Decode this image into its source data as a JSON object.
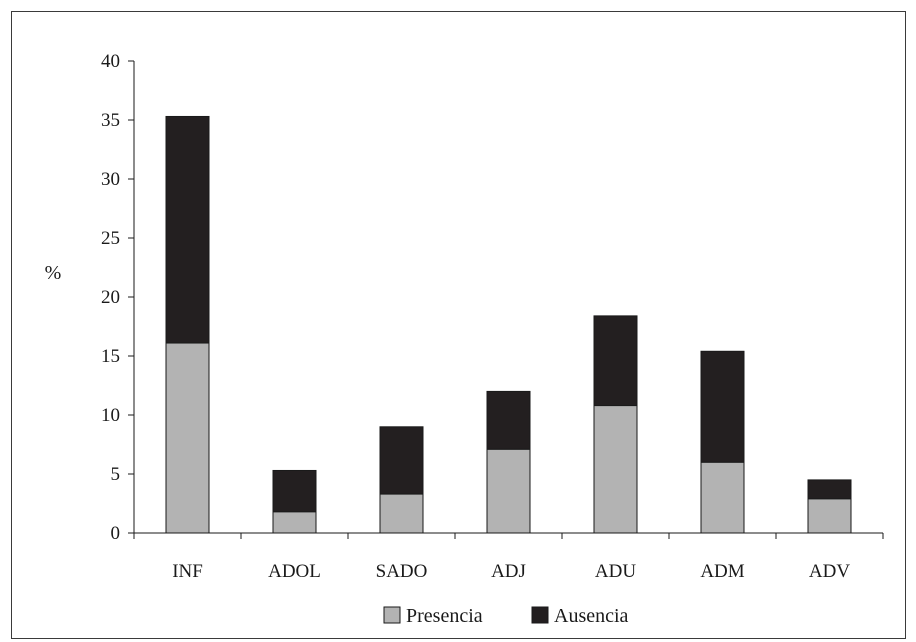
{
  "chart_data": {
    "type": "bar",
    "stacked": true,
    "title": "",
    "xlabel": "",
    "ylabel": "%",
    "ylim": [
      0,
      40
    ],
    "yticks": [
      "0",
      "5",
      "10",
      "15",
      "20",
      "25",
      "30",
      "35",
      "40"
    ],
    "categories": [
      "INF",
      "ADOL",
      "SADO",
      "ADJ",
      "ADU",
      "ADM",
      "ADV"
    ],
    "series": [
      {
        "name": "Presencia",
        "color": "#b3b3b3",
        "values": [
          16.1,
          1.8,
          3.3,
          7.1,
          10.8,
          6.0,
          2.9
        ]
      },
      {
        "name": "Ausencia",
        "color": "#231f20",
        "values": [
          19.2,
          3.5,
          5.7,
          4.9,
          7.6,
          9.4,
          1.6
        ]
      }
    ],
    "grid": false,
    "legend": "bottom-center"
  }
}
